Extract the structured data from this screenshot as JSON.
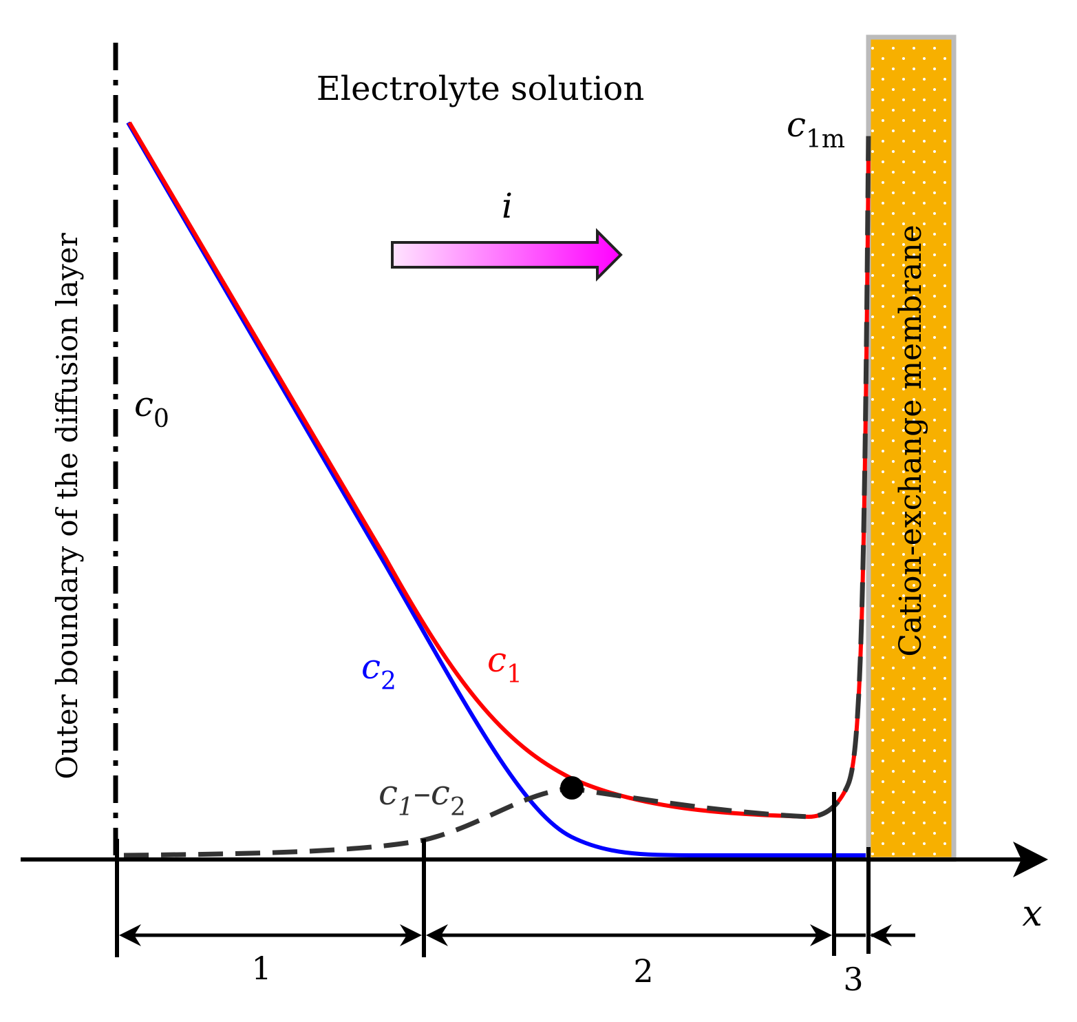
{
  "title": "Electrolyte solution",
  "current_label": "i",
  "membrane_label": "Cation-exchange membrane",
  "boundary_label": "Outer boundary of the diffusion layer",
  "axis_label": "x",
  "curves": {
    "c0": {
      "base": "c",
      "sub": "0"
    },
    "c1m": {
      "base": "c",
      "sub": "1m"
    },
    "c1": {
      "base": "c",
      "sub": "1"
    },
    "c2": {
      "base": "c",
      "sub": "2"
    },
    "diff": {
      "base1": "c",
      "sub1": "1",
      "sep": "–",
      "base2": "c",
      "sub2": "2"
    }
  },
  "regions": [
    "1",
    "2",
    "3"
  ],
  "colors": {
    "c1": "#ff0000",
    "c2": "#0000ff",
    "diff": "#333333",
    "membrane": "#f7b000",
    "membrane_border": "#bbbbbb",
    "arrow_start": "#ffe3ff",
    "arrow_end": "#ff00ff",
    "axis": "#000000"
  }
}
